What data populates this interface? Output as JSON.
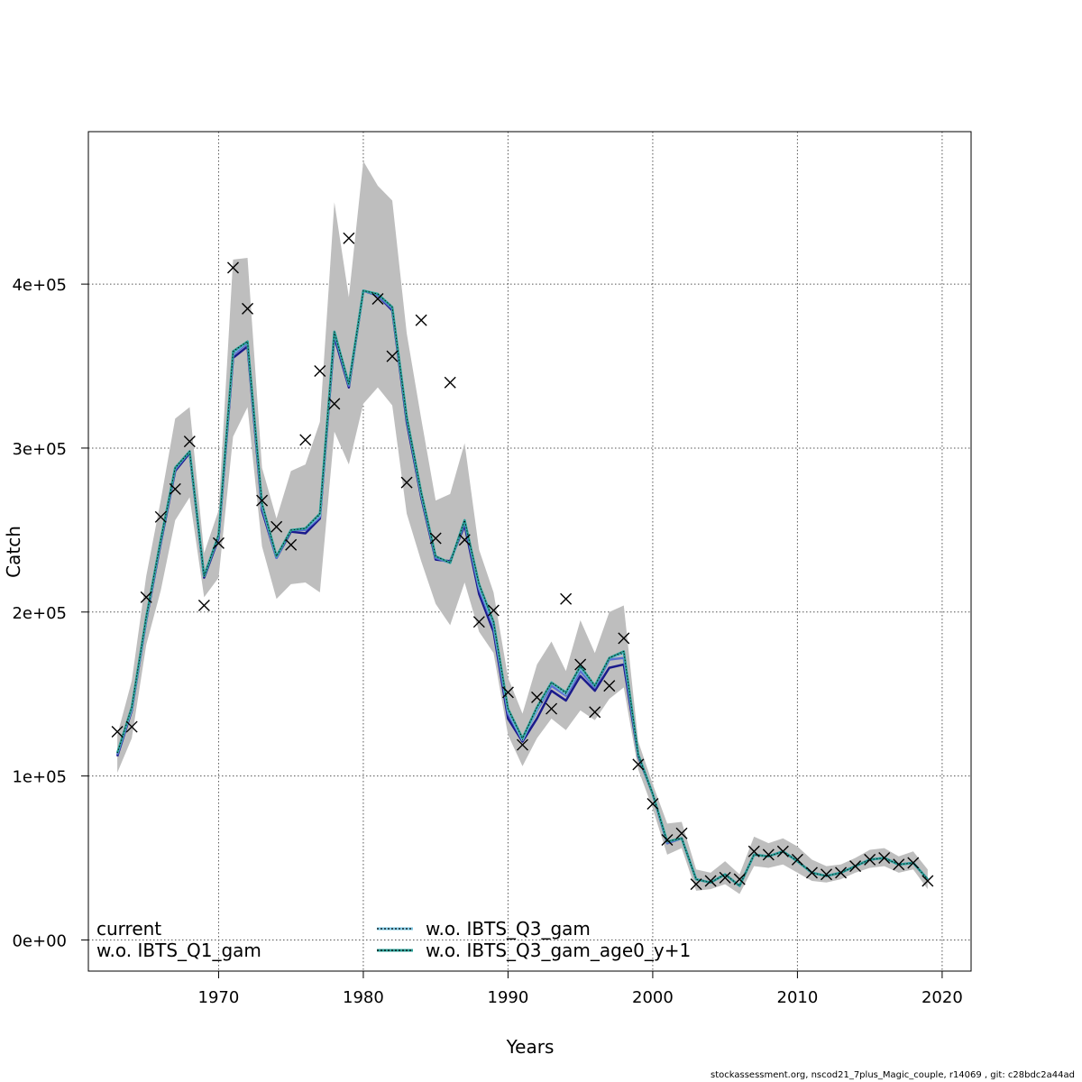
{
  "chart_data": {
    "type": "line",
    "xlabel": "Years",
    "ylabel": "Catch",
    "xlim": [
      1961,
      2022
    ],
    "ylim": [
      -19000,
      493000
    ],
    "xticks": [
      1970,
      1980,
      1990,
      2000,
      2010,
      2020
    ],
    "yticks": [
      0,
      100000,
      200000,
      300000,
      400000
    ],
    "ytick_labels": [
      "0e+00",
      "1e+05",
      "2e+05",
      "3e+05",
      "4e+05"
    ],
    "grid": true,
    "legend": {
      "placement": "bottom",
      "entries": [
        "current",
        "w.o. IBTS_Q1_gam",
        "w.o. IBTS_Q3_gam",
        "w.o. IBTS_Q3_gam_age0_y+1"
      ]
    },
    "years": [
      1963,
      1964,
      1965,
      1966,
      1967,
      1968,
      1969,
      1970,
      1971,
      1972,
      1973,
      1974,
      1975,
      1976,
      1977,
      1978,
      1979,
      1980,
      1981,
      1982,
      1983,
      1984,
      1985,
      1986,
      1987,
      1988,
      1989,
      1990,
      1991,
      1992,
      1993,
      1994,
      1995,
      1996,
      1997,
      1998,
      1999,
      2000,
      2001,
      2002,
      2003,
      2004,
      2005,
      2006,
      2007,
      2008,
      2009,
      2010,
      2011,
      2012,
      2013,
      2014,
      2015,
      2016,
      2017,
      2018,
      2019
    ],
    "observed": [
      127000,
      130000,
      209000,
      258000,
      275000,
      304000,
      204000,
      242000,
      410000,
      385000,
      268000,
      252000,
      241000,
      305000,
      347000,
      327000,
      428000,
      null,
      391000,
      356000,
      279000,
      378000,
      245000,
      340000,
      244000,
      194000,
      201000,
      151000,
      119000,
      148000,
      141000,
      208000,
      168000,
      139000,
      155000,
      184000,
      107000,
      83000,
      61000,
      65000,
      34000,
      36000,
      38000,
      37000,
      54000,
      52000,
      54000,
      49000,
      41000,
      40000,
      41000,
      45000,
      49000,
      50000,
      46000,
      47000,
      36000
    ],
    "ci_upper": [
      125000,
      158000,
      222000,
      268000,
      318000,
      325000,
      236000,
      262000,
      415000,
      416000,
      288000,
      257000,
      286000,
      290000,
      316000,
      450000,
      392000,
      475000,
      460000,
      451000,
      370000,
      318000,
      268000,
      272000,
      303000,
      238000,
      212000,
      160000,
      138000,
      168000,
      182000,
      164000,
      195000,
      175000,
      200000,
      204000,
      121000,
      95000,
      71000,
      72000,
      43000,
      41000,
      48000,
      40000,
      63000,
      59000,
      62000,
      57000,
      49000,
      45000,
      46000,
      50000,
      55000,
      56000,
      51000,
      54000,
      43000
    ],
    "ci_lower": [
      102000,
      123000,
      180000,
      213000,
      256000,
      270000,
      209000,
      221000,
      307000,
      325000,
      240000,
      208000,
      217000,
      218000,
      212000,
      310000,
      290000,
      327000,
      337000,
      326000,
      260000,
      231000,
      205000,
      192000,
      218000,
      188000,
      175000,
      125000,
      106000,
      123000,
      135000,
      128000,
      140000,
      134000,
      147000,
      154000,
      104000,
      80000,
      52000,
      56000,
      30000,
      31000,
      34000,
      28000,
      45000,
      44000,
      46000,
      41000,
      36000,
      35000,
      37000,
      41000,
      44000,
      45000,
      41000,
      43000,
      31000
    ],
    "series": [
      {
        "name": "current",
        "color": "#1a1a8c",
        "values": [
          112000,
          140000,
          195000,
          242000,
          286000,
          297000,
          221000,
          245000,
          355000,
          362000,
          262000,
          233000,
          249000,
          248000,
          257000,
          368000,
          337000,
          396000,
          393000,
          384000,
          316000,
          270000,
          232000,
          231000,
          253000,
          211000,
          188000,
          135000,
          121000,
          135000,
          152000,
          146000,
          161000,
          152000,
          166000,
          168000,
          112000,
          89000,
          59000,
          62000,
          37000,
          35000,
          40000,
          33000,
          52000,
          51000,
          54000,
          48000,
          41000,
          39000,
          41000,
          45000,
          49000,
          50000,
          46000,
          47000,
          37000
        ]
      },
      {
        "name": "w.o. IBTS_Q1_gam",
        "color": "#5a6fd1",
        "values": [
          113000,
          141000,
          196000,
          243000,
          287000,
          298000,
          222000,
          246000,
          357000,
          364000,
          264000,
          233000,
          250000,
          250000,
          258000,
          370000,
          338000,
          396000,
          393000,
          385000,
          318000,
          272000,
          233000,
          230000,
          255000,
          214000,
          191000,
          138000,
          122000,
          140000,
          155000,
          149000,
          164000,
          154000,
          171000,
          172000,
          113000,
          89000,
          59000,
          62000,
          37000,
          35000,
          40000,
          33000,
          52000,
          51000,
          54000,
          48000,
          41000,
          39000,
          41000,
          45000,
          49000,
          50000,
          46000,
          47000,
          37000
        ]
      },
      {
        "name": "w.o. IBTS_Q3_gam",
        "color": "#7ec8e3",
        "values": [
          114000,
          141000,
          196000,
          244000,
          288000,
          298000,
          222000,
          247000,
          358000,
          365000,
          265000,
          234000,
          250000,
          251000,
          259000,
          371000,
          339000,
          396000,
          394000,
          386000,
          319000,
          272000,
          234000,
          230000,
          256000,
          216000,
          193000,
          140000,
          122000,
          141000,
          157000,
          150000,
          166000,
          155000,
          172000,
          175000,
          113000,
          89000,
          60000,
          62000,
          37000,
          35000,
          40000,
          33000,
          52000,
          51000,
          54000,
          48000,
          41000,
          39000,
          41000,
          45000,
          49000,
          50000,
          46000,
          47000,
          37000
        ]
      },
      {
        "name": "w.o. IBTS_Q3_gam_age0_y+1",
        "color": "#2aa198",
        "values": [
          114000,
          142000,
          197000,
          244000,
          288000,
          298000,
          222000,
          247000,
          359000,
          365000,
          266000,
          234000,
          250000,
          251000,
          260000,
          371000,
          339000,
          396000,
          394000,
          386000,
          319000,
          273000,
          234000,
          230000,
          256000,
          217000,
          194000,
          141000,
          123000,
          142000,
          157000,
          151000,
          167000,
          155000,
          172000,
          176000,
          113000,
          89000,
          60000,
          62000,
          37000,
          35000,
          40000,
          33000,
          52000,
          51000,
          54000,
          48000,
          41000,
          39000,
          41000,
          45000,
          49000,
          50000,
          46000,
          47000,
          37000
        ]
      }
    ]
  },
  "credit": "stockassessment.org, nscod21_7plus_Magic_couple, r14069 , git: c28bdc2a44ad"
}
